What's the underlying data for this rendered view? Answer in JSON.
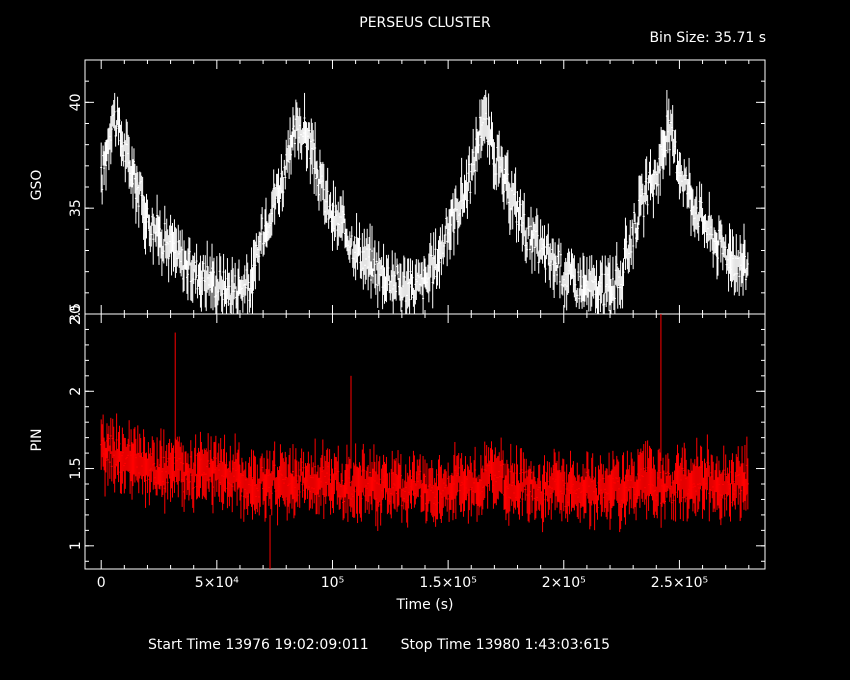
{
  "title": "PERSEUS CLUSTER",
  "bin_size": "Bin Size: 35.71 s",
  "footer": {
    "start": "Start Time 13976 19:02:09:011",
    "stop": "Stop Time 13980  1:43:03:615"
  },
  "colors": {
    "background": "#000000",
    "axes": "#ffffff",
    "gso": "#ffffff",
    "pin": "#ff0000"
  },
  "chart_data": [
    {
      "type": "line",
      "panel": "top",
      "title": "PERSEUS CLUSTER",
      "ylabel": "GSO",
      "xlim": [
        -7000,
        287000
      ],
      "ylim": [
        30,
        42
      ],
      "ytick_labels": [
        "30",
        "35",
        "40"
      ],
      "yticks": [
        30,
        35,
        40
      ],
      "series": [
        {
          "color": "#ffffff",
          "x": [
            0,
            5000,
            10000,
            15000,
            20000,
            25000,
            30000,
            35000,
            40000,
            45000,
            50000,
            55000,
            60000,
            65000,
            70000,
            75000,
            80000,
            85000,
            90000,
            95000,
            100000,
            105000,
            110000,
            115000,
            120000,
            125000,
            130000,
            135000,
            140000,
            145000,
            150000,
            155000,
            160000,
            165000,
            170000,
            175000,
            180000,
            185000,
            190000,
            195000,
            200000,
            205000,
            210000,
            215000,
            220000,
            225000,
            230000,
            235000,
            240000,
            245000,
            250000,
            255000,
            260000,
            265000,
            270000,
            275000,
            280000
          ],
          "y": [
            36.3,
            39.5,
            37.8,
            36.2,
            34.5,
            33.8,
            33.2,
            32.5,
            32.0,
            31.8,
            31.5,
            31.2,
            31.3,
            31.4,
            34.0,
            35.5,
            36.8,
            39.0,
            38.2,
            36.0,
            34.5,
            34.0,
            33.2,
            32.5,
            32.0,
            31.8,
            31.4,
            31.2,
            31.5,
            32.5,
            34.0,
            35.3,
            36.5,
            39.5,
            37.5,
            36.0,
            35.0,
            33.5,
            33.0,
            32.5,
            32.0,
            31.5,
            31.3,
            31.0,
            31.3,
            31.8,
            34.0,
            35.5,
            36.5,
            38.8,
            37.0,
            35.5,
            34.5,
            33.5,
            33.0,
            32.5,
            32.2
          ]
        }
      ]
    },
    {
      "type": "line",
      "panel": "bottom",
      "ylabel": "PIN",
      "xlabel": "Time (s)",
      "xlim": [
        -7000,
        287000
      ],
      "ylim": [
        0.85,
        2.5
      ],
      "ytick_labels": [
        "1",
        "1.5",
        "2",
        "2.5"
      ],
      "yticks": [
        1,
        1.5,
        2,
        2.5
      ],
      "xticks": [
        0,
        50000,
        100000,
        150000,
        200000,
        250000
      ],
      "xtick_labels": [
        "0",
        "5×10⁴",
        "10⁵",
        "1.5×10⁵",
        "2×10⁵",
        "2.5×10⁵"
      ],
      "series": [
        {
          "color": "#ff0000",
          "x": [
            0,
            5000,
            10000,
            15000,
            20000,
            25000,
            30000,
            35000,
            40000,
            45000,
            50000,
            55000,
            60000,
            65000,
            70000,
            75000,
            80000,
            85000,
            90000,
            95000,
            100000,
            105000,
            110000,
            115000,
            120000,
            125000,
            130000,
            135000,
            140000,
            145000,
            150000,
            155000,
            160000,
            165000,
            170000,
            175000,
            180000,
            185000,
            190000,
            195000,
            200000,
            205000,
            210000,
            215000,
            220000,
            225000,
            230000,
            235000,
            240000,
            245000,
            250000,
            255000,
            260000,
            265000,
            270000,
            275000,
            280000
          ],
          "y": [
            1.58,
            1.62,
            1.55,
            1.52,
            1.5,
            1.47,
            1.49,
            1.45,
            1.48,
            1.46,
            1.5,
            1.44,
            1.43,
            1.41,
            1.4,
            1.42,
            1.39,
            1.43,
            1.45,
            1.41,
            1.4,
            1.38,
            1.42,
            1.4,
            1.37,
            1.38,
            1.36,
            1.39,
            1.37,
            1.36,
            1.38,
            1.4,
            1.39,
            1.42,
            1.45,
            1.41,
            1.38,
            1.4,
            1.37,
            1.39,
            1.36,
            1.38,
            1.37,
            1.35,
            1.38,
            1.36,
            1.37,
            1.4,
            1.38,
            1.37,
            1.42,
            1.4,
            1.45,
            1.43,
            1.38,
            1.4,
            1.42
          ]
        }
      ],
      "spikes": [
        {
          "x": 32000,
          "y_low": 1.6,
          "y_high": 2.38
        },
        {
          "x": 73000,
          "y_low": 0.85,
          "y_high": 1.2
        },
        {
          "x": 108000,
          "y_low": 1.5,
          "y_high": 2.1
        },
        {
          "x": 242000,
          "y_low": 1.55,
          "y_high": 2.5
        }
      ]
    }
  ]
}
